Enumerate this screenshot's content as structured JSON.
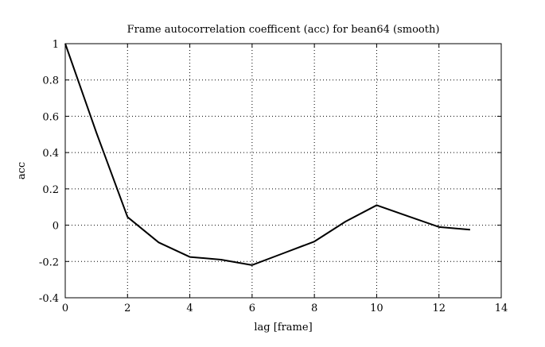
{
  "chart_data": {
    "type": "line",
    "title": "Frame autocorrelation coefficent (acc) for bean64 (smooth)",
    "xlabel": "lag [frame]",
    "ylabel": "acc",
    "xlim": [
      0,
      14
    ],
    "ylim": [
      -0.4,
      1
    ],
    "xticks": [
      0,
      2,
      4,
      6,
      8,
      10,
      12,
      14
    ],
    "yticks": [
      -0.4,
      -0.2,
      0,
      0.2,
      0.4,
      0.6,
      0.8,
      1
    ],
    "xtick_labels": [
      "0",
      "2",
      "4",
      "6",
      "8",
      "10",
      "12",
      "14"
    ],
    "ytick_labels": [
      "-0.4",
      "-0.2",
      "0",
      "0.2",
      "0.4",
      "0.6",
      "0.8",
      "1"
    ],
    "grid": true,
    "grid_style": "dotted",
    "line_color": "#000000",
    "series": [
      {
        "x": [
          0,
          1,
          2,
          3,
          4,
          5,
          6,
          7,
          8,
          9,
          10,
          11,
          12,
          13
        ],
        "values": [
          1.0,
          0.51,
          0.045,
          -0.095,
          -0.175,
          -0.19,
          -0.22,
          -0.155,
          -0.09,
          0.02,
          0.11,
          0.05,
          -0.01,
          -0.025
        ]
      }
    ]
  }
}
